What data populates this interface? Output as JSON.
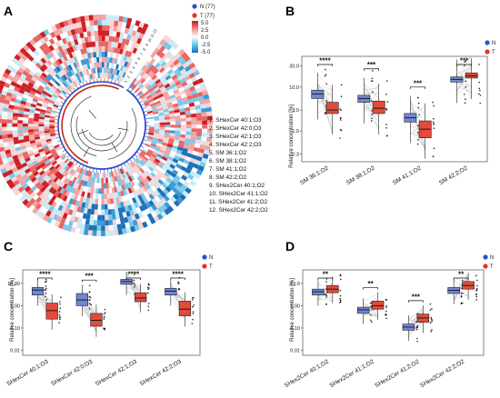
{
  "panels": {
    "A": {
      "label": "A",
      "legend": {
        "N": "N (77)",
        "T": "T (77)"
      },
      "colorbar": {
        "ticks": [
          "5.0",
          "2.5",
          "0.0",
          "-2.5",
          "-5.0"
        ]
      },
      "ring_labels": [
        "1",
        "2",
        "3",
        "4",
        "5",
        "6",
        "7",
        "8",
        "9",
        "10",
        "11",
        "12"
      ],
      "lipids": [
        "1. SHexCer 40:1;O3",
        "2. SHexCer 42:0;O3",
        "3. SHexCer 42:1;O3",
        "4. SHexCer 42:2;O3",
        "5. SM 36:1;O2",
        "6. SM 38:1;O2",
        "7. SM 41:1;O2",
        "8. SM 42:2;O2",
        "9. SHex2Cer 40:1;O2",
        "10. SHex2Cer 41:1;O2",
        "11. SHex2Cer 41:2;O2",
        "12. SHex2Cer 42:2;O2"
      ]
    },
    "B": {
      "label": "B",
      "ylabel": "Relative concentration [%]",
      "legend": [
        "N",
        "T"
      ],
      "yticks": [
        "0.3",
        "1.0",
        "3.0",
        "10.0",
        "30.0"
      ],
      "sig": [
        "****",
        "***",
        "***",
        "***"
      ]
    },
    "C": {
      "label": "C",
      "ylabel": "Relative concentration [%]",
      "legend": [
        "N",
        "T"
      ],
      "yticks": [
        "0.01",
        "0.10",
        "1.00",
        "10.00"
      ],
      "sig": [
        "****",
        "***",
        "****",
        "****"
      ]
    },
    "D": {
      "label": "D",
      "ylabel": "Relative concentration [%]",
      "legend": [
        "N",
        "T"
      ],
      "yticks": [
        "0.01",
        "0.10",
        "1.00",
        "10.0"
      ],
      "sig": [
        "**",
        "**",
        "***",
        "**"
      ]
    }
  },
  "colors": {
    "N": "#2f4fc9",
    "T": "#e0322a",
    "N_box": "#6f86d6",
    "T_box": "#e24a3a"
  },
  "chart_data": [
    {
      "type": "box",
      "panel": "B",
      "categories": [
        "SM 36:1;O2",
        "SM 38:1;O2",
        "SM 41:1;O2",
        "SM 42:2;O2"
      ],
      "series": [
        {
          "name": "N",
          "q1": [
            5.5,
            4.5,
            1.6,
            13
          ],
          "median": [
            7,
            5.5,
            2.0,
            15
          ],
          "q3": [
            8.5,
            6.5,
            2.5,
            17
          ]
        },
        {
          "name": "T",
          "q1": [
            2.5,
            2.5,
            0.7,
            16
          ],
          "median": [
            3.0,
            3.3,
            1.1,
            18
          ],
          "q3": [
            4.5,
            4.8,
            1.7,
            21
          ]
        }
      ],
      "ylim": [
        0.2,
        50
      ],
      "yscale": "log"
    },
    {
      "type": "box",
      "panel": "C",
      "categories": [
        "SHexCer 40:1;O3",
        "SHexCer 42:0;O3",
        "SHexCer 42:1;O3",
        "SHexCer 42:2;O3"
      ],
      "series": [
        {
          "name": "N",
          "q1": [
            3.0,
            1.0,
            9,
            3.0
          ],
          "median": [
            5,
            1.8,
            12,
            4.5
          ],
          "q3": [
            6.5,
            3.5,
            15,
            6.0
          ]
        },
        {
          "name": "T",
          "q1": [
            0.25,
            0.12,
            1.5,
            0.35
          ],
          "median": [
            0.6,
            0.22,
            2.2,
            0.7
          ],
          "q3": [
            1.3,
            0.45,
            3.8,
            1.6
          ]
        }
      ],
      "ylim": [
        0.006,
        40
      ],
      "yscale": "log"
    },
    {
      "type": "box",
      "panel": "D",
      "categories": [
        "SHex2Cer 40:1;O2",
        "SHex2Cer 41:1;O2",
        "SHex2Cer 41:2;O2",
        "SHex2Cer 42:2;O2"
      ],
      "series": [
        {
          "name": "N",
          "q1": [
            3.0,
            0.45,
            0.08,
            3.5
          ],
          "median": [
            4.2,
            0.65,
            0.11,
            4.8
          ],
          "q3": [
            5.5,
            0.85,
            0.15,
            6.5
          ]
        },
        {
          "name": "T",
          "q1": [
            3.8,
            0.7,
            0.18,
            5.5
          ],
          "median": [
            5.5,
            1.0,
            0.28,
            8.0
          ],
          "q3": [
            8.0,
            1.6,
            0.42,
            12.0
          ]
        }
      ],
      "ylim": [
        0.006,
        40
      ],
      "yscale": "log"
    }
  ]
}
